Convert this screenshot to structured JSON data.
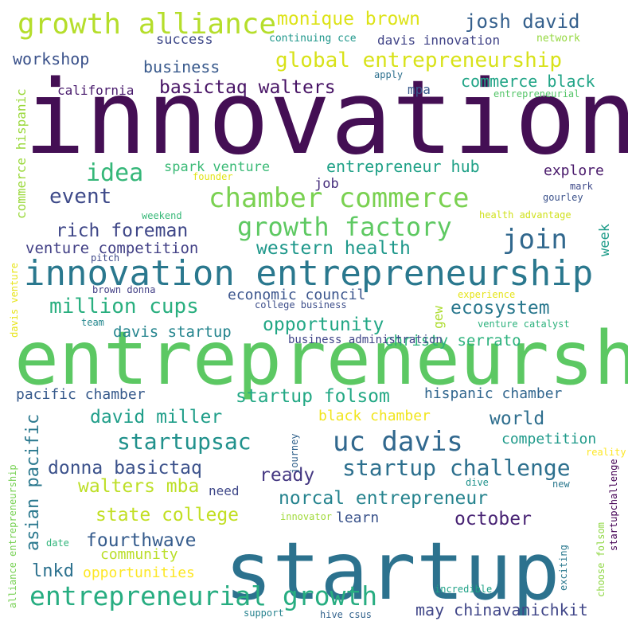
{
  "background": "#ffffff",
  "words": [
    {
      "text": "innovation",
      "color": "#440f54"
    },
    {
      "text": "entrepreneurship",
      "color": "#5cc863"
    },
    {
      "text": "startup",
      "color": "#2c728e"
    },
    {
      "text": "innovation entrepreneurship",
      "color": "#2a788e"
    },
    {
      "text": "chamber commerce",
      "color": "#7ad151"
    },
    {
      "text": "uc davis",
      "color": "#31688e"
    },
    {
      "text": "entrepreneurial growth",
      "color": "#27ad81"
    },
    {
      "text": "growth alliance",
      "color": "#b5de2b"
    },
    {
      "text": "growth factory",
      "color": "#5ec962"
    },
    {
      "text": "global entrepreneurship",
      "color": "#d8e219"
    },
    {
      "text": "startup challenge",
      "color": "#2d708e"
    },
    {
      "text": "startupsac",
      "color": "#21918c"
    },
    {
      "text": "join",
      "color": "#31688e"
    },
    {
      "text": "idea",
      "color": "#35b779"
    },
    {
      "text": "event",
      "color": "#3e4a89"
    },
    {
      "text": "million cups",
      "color": "#29af7f"
    },
    {
      "text": "startup folsom",
      "color": "#22a884"
    },
    {
      "text": "monique brown",
      "color": "#dde318"
    },
    {
      "text": "josh david",
      "color": "#35608d"
    },
    {
      "text": "basictaq walters",
      "color": "#471365"
    },
    {
      "text": "rich foreman",
      "color": "#3f4788"
    },
    {
      "text": "western health",
      "color": "#1f988b"
    },
    {
      "text": "ecosystem",
      "color": "#2a788e"
    },
    {
      "text": "opportunity",
      "color": "#22a785"
    },
    {
      "text": "norcal entrepreneur",
      "color": "#25838e"
    },
    {
      "text": "donna basictaq",
      "color": "#3b518b"
    },
    {
      "text": "ready",
      "color": "#453882"
    },
    {
      "text": "david miller",
      "color": "#1f9e89"
    },
    {
      "text": "world",
      "color": "#2e6e8e"
    },
    {
      "text": "walters mba",
      "color": "#bddf26"
    },
    {
      "text": "state college",
      "color": "#c2df23"
    },
    {
      "text": "fourthwave",
      "color": "#365c8d"
    },
    {
      "text": "october",
      "color": "#482374"
    },
    {
      "text": "may chinavanichkit",
      "color": "#404688"
    },
    {
      "text": "entrepreneur hub",
      "color": "#1fa187"
    },
    {
      "text": "workshop",
      "color": "#3b528b"
    },
    {
      "text": "business",
      "color": "#38598c"
    },
    {
      "text": "commerce black",
      "color": "#20a486"
    },
    {
      "text": "venture competition",
      "color": "#424086"
    },
    {
      "text": "economic council",
      "color": "#3a548c"
    },
    {
      "text": "christy serrato",
      "color": "#2db27d"
    },
    {
      "text": "davis startup",
      "color": "#25858e"
    },
    {
      "text": "pacific chamber",
      "color": "#375a8c"
    },
    {
      "text": "hispanic chamber",
      "color": "#31668e"
    },
    {
      "text": "black chamber",
      "color": "#f1e51d"
    },
    {
      "text": "competition",
      "color": "#1f9a8a"
    },
    {
      "text": "asian pacific",
      "color": "#2a788e"
    },
    {
      "text": "lnkd",
      "color": "#2c718e"
    },
    {
      "text": "opportunities",
      "color": "#fde725"
    },
    {
      "text": "community",
      "color": "#bade28"
    },
    {
      "text": "learn",
      "color": "#3a538b"
    },
    {
      "text": "spark venture",
      "color": "#3aba76"
    },
    {
      "text": "explore",
      "color": "#48186a"
    },
    {
      "text": "success",
      "color": "#3e4989"
    },
    {
      "text": "davis innovation",
      "color": "#414487"
    },
    {
      "text": "job",
      "color": "#472f7d"
    },
    {
      "text": "week",
      "color": "#1e9c89"
    },
    {
      "text": "need",
      "color": "#3f4889"
    },
    {
      "text": "commerce hispanic",
      "color": "#9bd93c"
    },
    {
      "text": "california",
      "color": "#481a6c"
    },
    {
      "text": "mpa",
      "color": "#38598c"
    },
    {
      "text": "gew",
      "color": "#addc30"
    },
    {
      "text": "business administration",
      "color": "#404588"
    },
    {
      "text": "continuing cce",
      "color": "#1f978b"
    },
    {
      "text": "network",
      "color": "#95d840"
    },
    {
      "text": "apply",
      "color": "#2d708e"
    },
    {
      "text": "entrepreneurial",
      "color": "#54c568"
    },
    {
      "text": "founder",
      "color": "#e2e418"
    },
    {
      "text": "mark",
      "color": "#3e4989"
    },
    {
      "text": "gourley",
      "color": "#3b528b"
    },
    {
      "text": "weekend",
      "color": "#37b878"
    },
    {
      "text": "health advantage",
      "color": "#d0e11c"
    },
    {
      "text": "pitch",
      "color": "#3e4989"
    },
    {
      "text": "brown donna",
      "color": "#423f85"
    },
    {
      "text": "experience",
      "color": "#e5e419"
    },
    {
      "text": "college business",
      "color": "#3d4e8a"
    },
    {
      "text": "team",
      "color": "#24878e"
    },
    {
      "text": "venture catalyst",
      "color": "#2db27d"
    },
    {
      "text": "davis venture",
      "color": "#e7e419"
    },
    {
      "text": "alliance entrepreneurship",
      "color": "#77d153"
    },
    {
      "text": "journey",
      "color": "#33638d"
    },
    {
      "text": "reality",
      "color": "#fde725"
    },
    {
      "text": "dive",
      "color": "#20928c"
    },
    {
      "text": "new",
      "color": "#2a788e"
    },
    {
      "text": "startupchallenge",
      "color": "#440154"
    },
    {
      "text": "choose folsom",
      "color": "#8fd744"
    },
    {
      "text": "innovator",
      "color": "#a0da39"
    },
    {
      "text": "date",
      "color": "#31b57b"
    },
    {
      "text": "exciting",
      "color": "#2a788e"
    },
    {
      "text": "incredible",
      "color": "#1fa287"
    },
    {
      "text": "support",
      "color": "#26828e"
    },
    {
      "text": "hive csus",
      "color": "#33638d"
    }
  ]
}
